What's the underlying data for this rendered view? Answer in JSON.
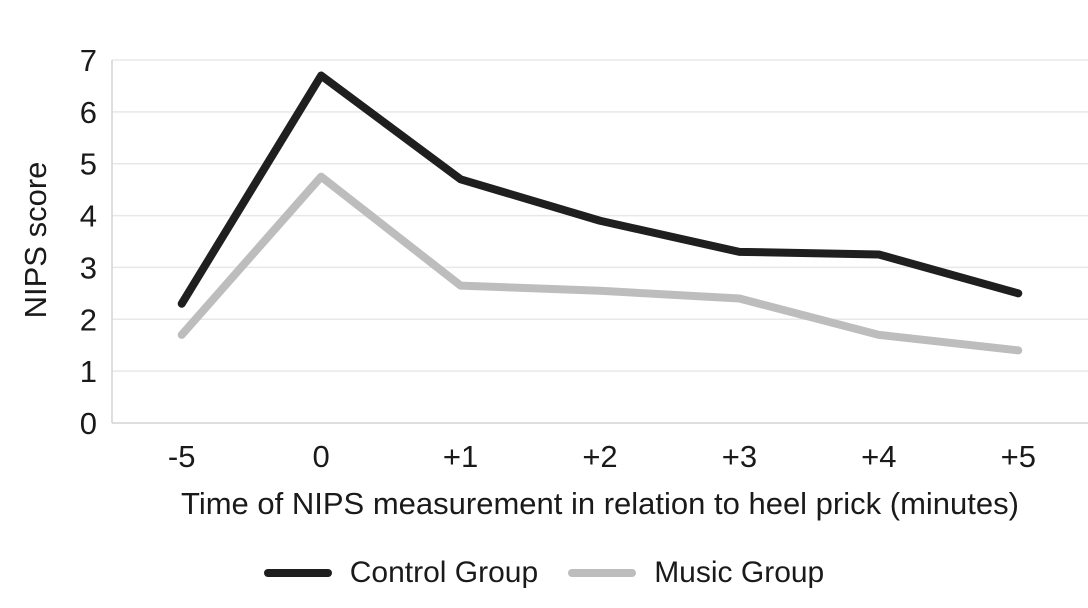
{
  "colors": {
    "background": "#ffffff",
    "grid": "#e8e8e8",
    "axis": "#d4d4d4",
    "text": "#1a1a1a",
    "control_series": "#1f1f1f",
    "music_series": "#bdbdbd"
  },
  "chart_data": {
    "type": "line",
    "title": "",
    "xlabel": "Time of NIPS measurement in relation to heel prick (minutes)",
    "ylabel": "NIPS score",
    "categories": [
      "-5",
      "0",
      "+1",
      "+2",
      "+3",
      "+4",
      "+5"
    ],
    "series": [
      {
        "name": "Control Group",
        "color": "#1f1f1f",
        "values": [
          2.3,
          6.7,
          4.7,
          3.9,
          3.3,
          3.25,
          2.5
        ]
      },
      {
        "name": "Music Group",
        "color": "#bdbdbd",
        "values": [
          1.7,
          4.75,
          2.65,
          2.55,
          2.4,
          1.7,
          1.4
        ]
      }
    ],
    "ylim": [
      0,
      7
    ],
    "yticks": [
      0,
      1,
      2,
      3,
      4,
      5,
      6,
      7
    ],
    "grid": true,
    "legend_position": "bottom"
  }
}
